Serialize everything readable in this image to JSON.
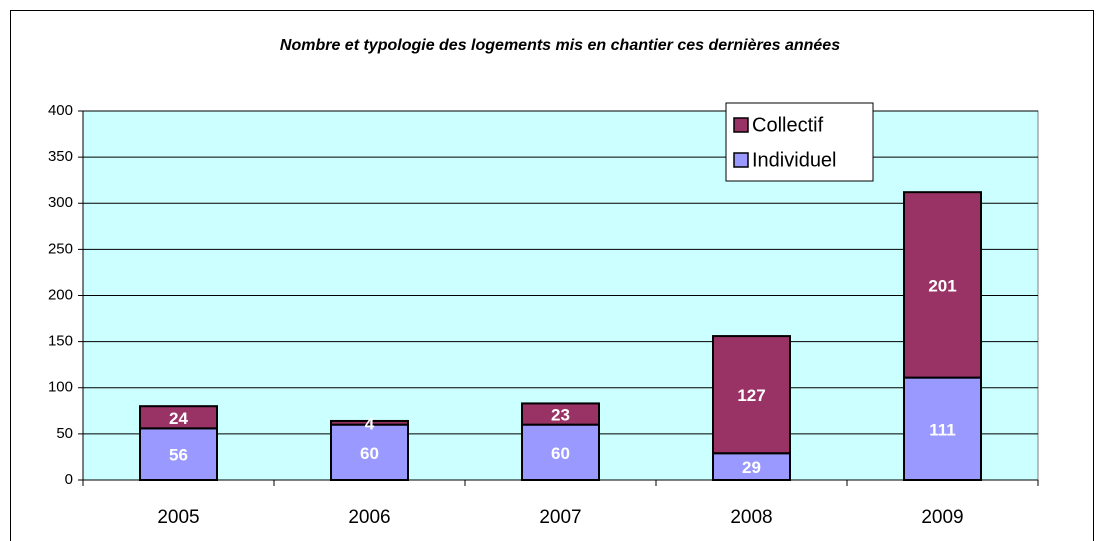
{
  "chart_data": {
    "type": "bar",
    "stacked": true,
    "title": "Nombre et typologie des logements mis en chantier ces dernières années",
    "categories": [
      "2005",
      "2006",
      "2007",
      "2008",
      "2009"
    ],
    "series": [
      {
        "name": "Individuel",
        "color": "#9999ff",
        "values": [
          56,
          60,
          60,
          29,
          111
        ]
      },
      {
        "name": "Collectif",
        "color": "#993366",
        "values": [
          24,
          4,
          23,
          127,
          201
        ]
      }
    ],
    "ylim": [
      0,
      400
    ],
    "yticks": [
      0,
      50,
      100,
      150,
      200,
      250,
      300,
      350,
      400
    ],
    "grid": true,
    "legend": "top-right",
    "plot_background": "#ccffff"
  }
}
